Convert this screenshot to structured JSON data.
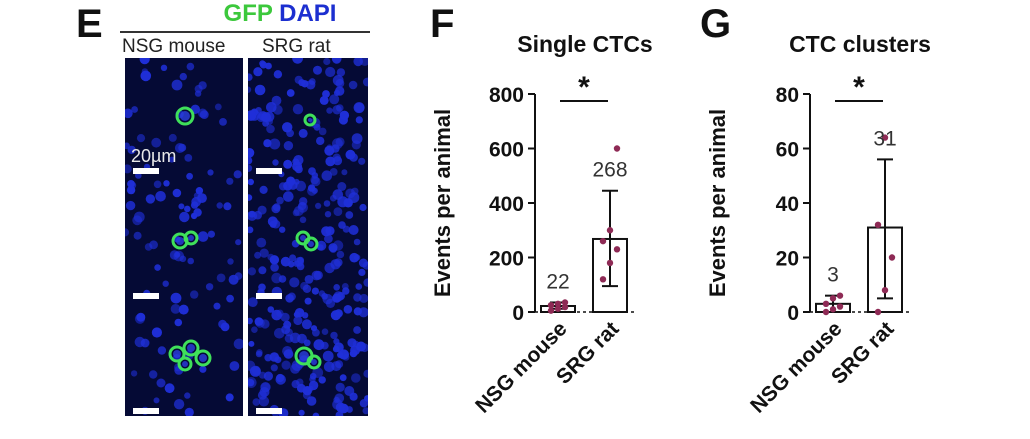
{
  "panel_e": {
    "letter": "E",
    "stain_green": "GFP",
    "stain_blue": "DAPI",
    "columns": [
      "NSG mouse",
      "SRG rat"
    ],
    "scale_bar_label": "20µm",
    "colors": {
      "nuclei": "#1f2fd8",
      "background": "#050a35",
      "gfp": "#3fe05a"
    }
  },
  "chart_data": [
    {
      "panel": "F",
      "type": "bar",
      "title": "Single CTCs",
      "ylabel": "Events per animal",
      "xlabel": "",
      "categories": [
        "NSG mouse",
        "SRG rat"
      ],
      "values": [
        22,
        268
      ],
      "value_labels": [
        "22",
        "268"
      ],
      "error_lower": [
        12,
        95
      ],
      "error_upper": [
        35,
        445
      ],
      "points": [
        [
          5,
          12,
          18,
          25,
          30,
          35
        ],
        [
          120,
          180,
          230,
          260,
          300,
          600
        ]
      ],
      "ylim": [
        0,
        800
      ],
      "yticks": [
        0,
        200,
        400,
        600,
        800
      ],
      "significance": "*",
      "point_color": "#8e2a55"
    },
    {
      "panel": "G",
      "type": "bar",
      "title": "CTC clusters",
      "ylabel": "Events per animal",
      "xlabel": "",
      "categories": [
        "NSG mouse",
        "SRG rat"
      ],
      "values": [
        3,
        31
      ],
      "value_labels": [
        "3",
        "31"
      ],
      "error_lower": [
        0,
        5
      ],
      "error_upper": [
        6,
        56
      ],
      "points": [
        [
          0,
          1,
          2,
          3,
          5,
          6
        ],
        [
          0,
          8,
          20,
          32,
          64
        ]
      ],
      "ylim": [
        0,
        80
      ],
      "yticks": [
        0,
        20,
        40,
        60,
        80
      ],
      "significance": "*",
      "point_color": "#8e2a55"
    }
  ]
}
